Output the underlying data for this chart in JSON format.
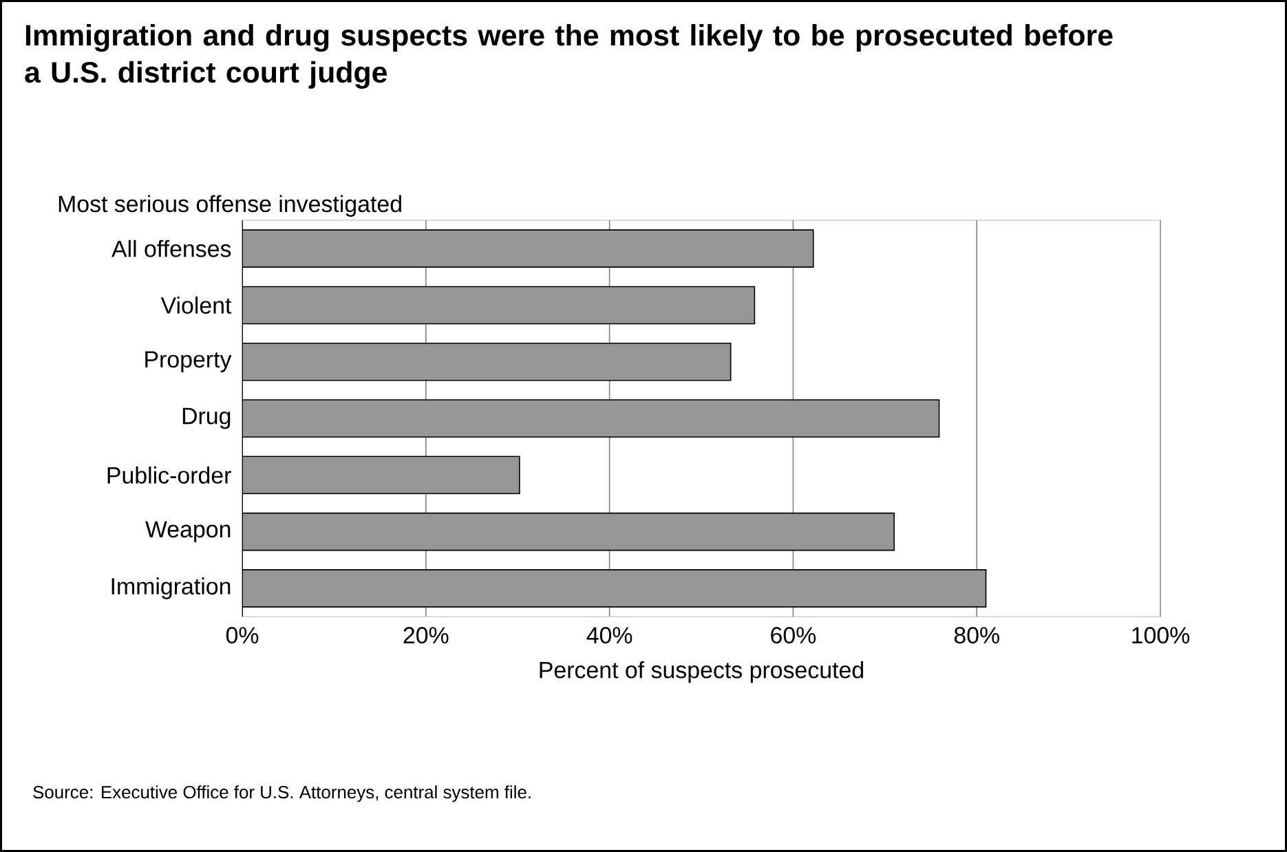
{
  "chart_data": {
    "type": "bar",
    "orientation": "horizontal",
    "title": "Immigration and drug suspects were the most likely to be prosecuted before a U.S. district court judge",
    "ylabel": "Most serious offense investigated",
    "xlabel": "Percent of suspects prosecuted",
    "categories": [
      "All offenses",
      "Violent",
      "Property",
      "Drug",
      "Public-order",
      "Weapon",
      "Immigration"
    ],
    "values": [
      62.2,
      55.8,
      53.2,
      75.9,
      30.2,
      71.0,
      81.0
    ],
    "color": "#969696",
    "xlim": [
      0,
      100
    ],
    "xticks": [
      {
        "value": 0,
        "label": "0%"
      },
      {
        "value": 20,
        "label": "20%"
      },
      {
        "value": 40,
        "label": "40%"
      },
      {
        "value": 60,
        "label": "60%"
      },
      {
        "value": 80,
        "label": "80%"
      },
      {
        "value": 100,
        "label": "100%"
      }
    ],
    "grid": "x",
    "annotations": [
      "Source: Executive Office for U.S. Attorneys, central system file."
    ]
  }
}
